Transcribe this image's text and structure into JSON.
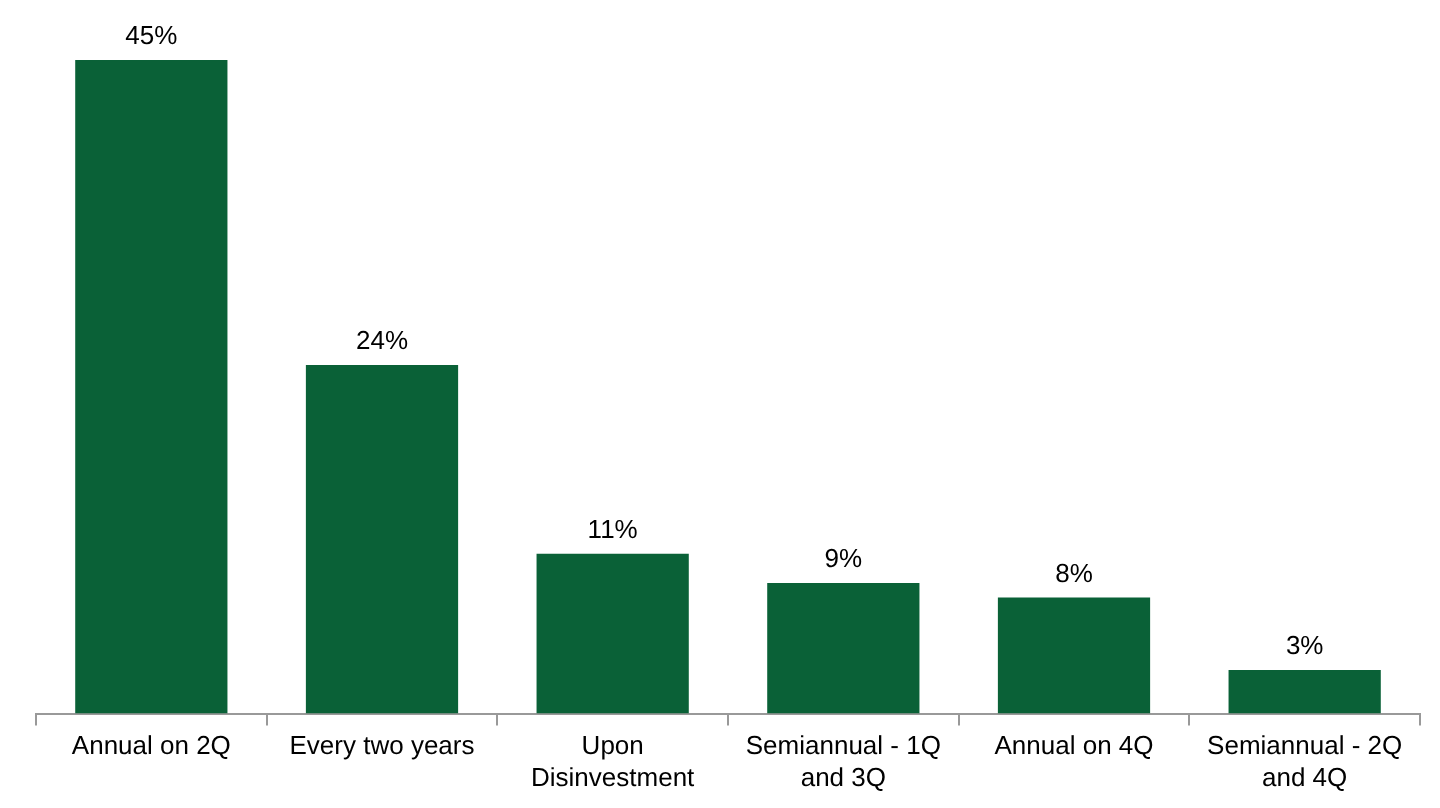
{
  "chart_data": {
    "type": "bar",
    "categories": [
      "Annual on 2Q",
      "Every two years",
      "Upon Disinvestment",
      "Semiannual - 1Q and 3Q",
      "Annual on 4Q",
      "Semiannual - 2Q and 4Q"
    ],
    "values": [
      45,
      24,
      11,
      9,
      8,
      3
    ],
    "color": "#0a6137",
    "relative": false,
    "value_labels": [
      "45%",
      "24%",
      "11%",
      "9%",
      "8%",
      "3%"
    ],
    "grid": false,
    "legend": false
  }
}
